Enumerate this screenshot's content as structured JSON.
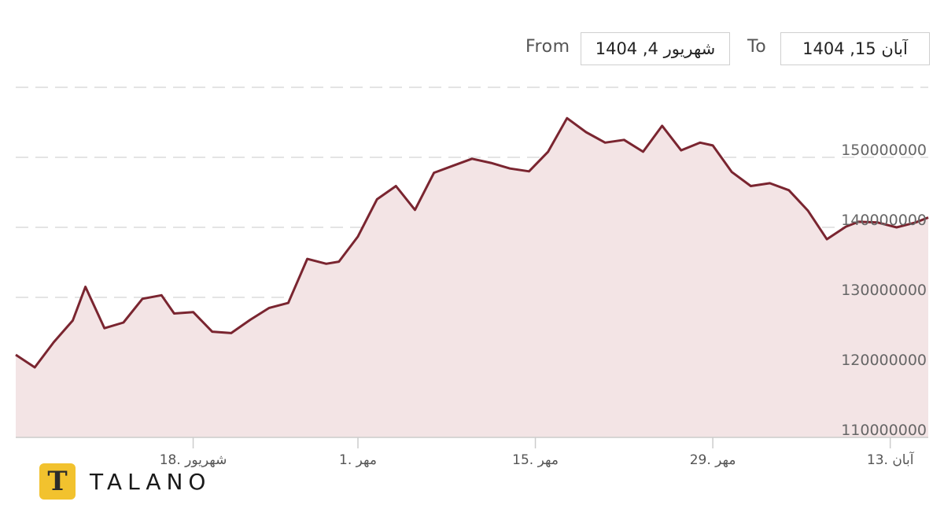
{
  "date_range": {
    "from_label": "From",
    "from_value": "1404 ,4 شهریور",
    "to_label": "To",
    "to_value": "1404 ,15 آبان"
  },
  "brand": {
    "mark": "T",
    "name": "TALANO",
    "mark_color": "#f2c22e"
  },
  "chart_data": {
    "type": "area",
    "line_color": "#7a2530",
    "fill_color": "#f3e4e5",
    "grid": true,
    "ylim": [
      110000000,
      160000000
    ],
    "yticks": [
      110000000,
      120000000,
      130000000,
      140000000,
      150000000
    ],
    "ytick_labels": [
      "110000000",
      "120000000",
      "130000000",
      "140000000",
      "150000000"
    ],
    "xlim": [
      0,
      72
    ],
    "xticks": [
      {
        "x": 14,
        "label": "شهریور .18"
      },
      {
        "x": 27,
        "label": "مهر .1"
      },
      {
        "x": 41,
        "label": "مهر .15"
      },
      {
        "x": 55,
        "label": "مهر .29"
      },
      {
        "x": 69,
        "label": "آبان .13"
      }
    ],
    "x": [
      0,
      1.5,
      3,
      4.5,
      5.5,
      7,
      8.5,
      10,
      11.5,
      12.5,
      14,
      15.5,
      17,
      18.5,
      20,
      21.5,
      23,
      24.5,
      25.5,
      27,
      28.5,
      30,
      31.5,
      33,
      34.5,
      36,
      37.5,
      39,
      40.5,
      42,
      43.5,
      45,
      46.5,
      48,
      49.5,
      51,
      52.5,
      54,
      55,
      56.5,
      58,
      59.5,
      61,
      62.5,
      64,
      65.5,
      66.5,
      68,
      69.5,
      71,
      72
    ],
    "y": [
      121800000,
      120000000,
      123600000,
      126700000,
      131500000,
      125600000,
      126400000,
      129800000,
      130300000,
      127700000,
      127900000,
      125100000,
      124900000,
      126800000,
      128500000,
      129200000,
      135500000,
      134800000,
      135100000,
      138700000,
      144000000,
      145900000,
      142500000,
      147800000,
      148800000,
      149800000,
      149200000,
      148400000,
      148000000,
      150800000,
      155600000,
      153600000,
      152100000,
      152500000,
      150800000,
      154500000,
      151000000,
      152100000,
      151700000,
      147900000,
      145900000,
      146300000,
      145300000,
      142400000,
      138300000,
      140100000,
      140800000,
      140700000,
      140000000,
      140700000,
      141400000
    ]
  }
}
